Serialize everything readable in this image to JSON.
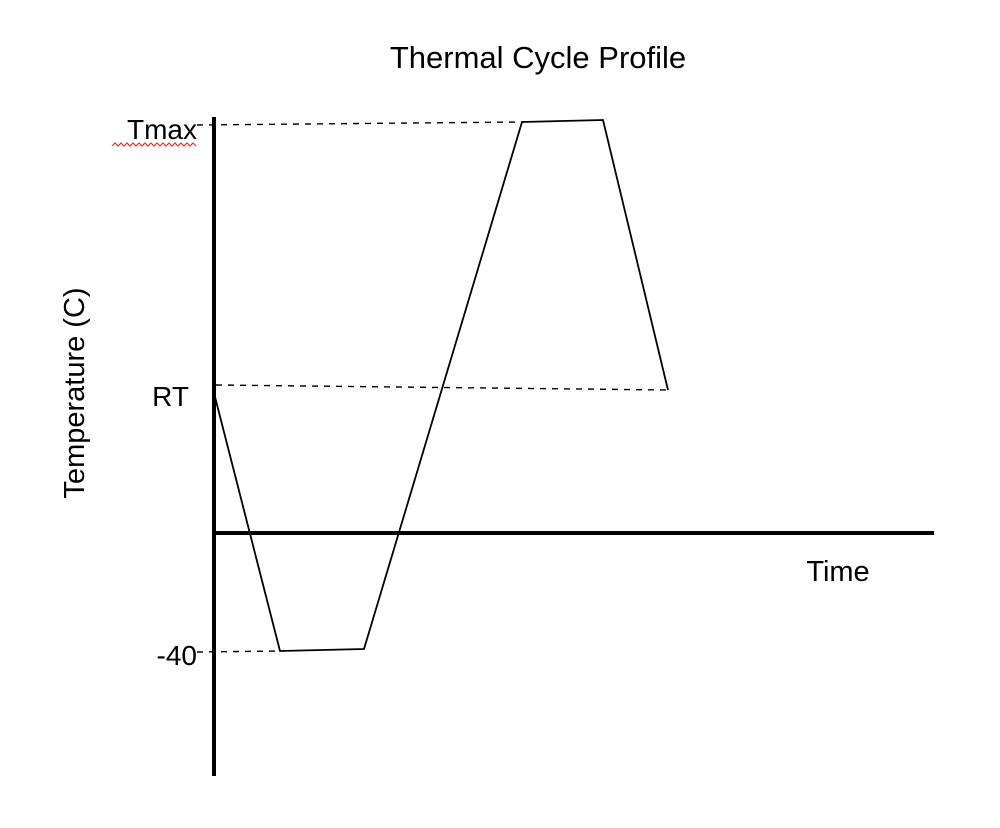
{
  "chart_data": {
    "type": "line",
    "title": "Thermal Cycle Profile",
    "ylabel": "Temperature (C)",
    "xlabel": "Time",
    "y_levels": [
      "Tmax",
      "RT",
      "-40"
    ],
    "profile": {
      "points": [
        "RT",
        "-40",
        "-40",
        "Tmax",
        "Tmax",
        "RT"
      ],
      "segments": [
        "ramp down",
        "dwell",
        "ramp up",
        "dwell",
        "ramp down"
      ]
    },
    "reference_lines": [
      "Tmax",
      "RT",
      "-40"
    ],
    "reference_line_style": "dashed",
    "grid": false,
    "legend": "none",
    "colors": {
      "line": "#000000",
      "background": "#ffffff"
    }
  }
}
